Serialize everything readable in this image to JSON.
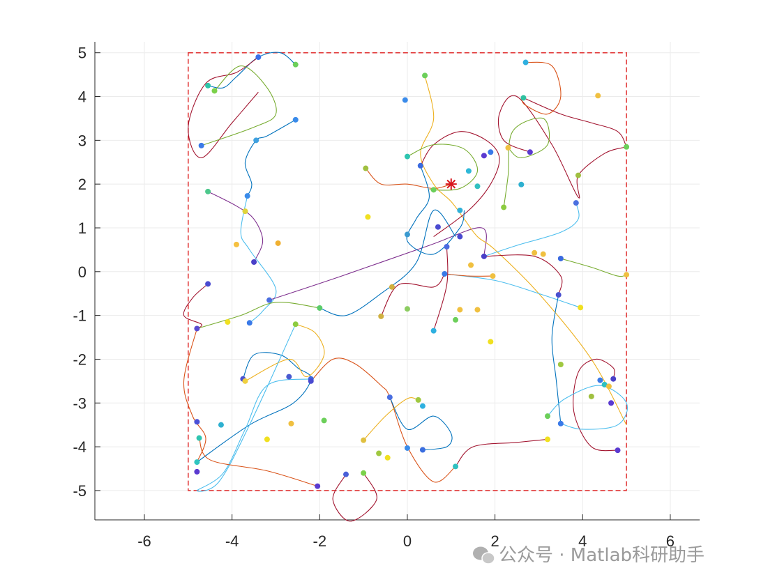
{
  "chart_data": {
    "type": "scatter",
    "xlim": [
      -7.13,
      6.67
    ],
    "ylim": [
      -5.67,
      5.25
    ],
    "xticks": [
      -6,
      -4,
      -2,
      0,
      2,
      4,
      6
    ],
    "yticks": [
      -5,
      -4,
      -3,
      -2,
      -1,
      0,
      1,
      2,
      3,
      4,
      5
    ],
    "grid": true,
    "boundary": {
      "x": [
        -5,
        5
      ],
      "y": [
        -5,
        5
      ],
      "color": "#e03030"
    },
    "target": {
      "x": 1,
      "y": 2,
      "color": "#d8161c"
    },
    "paths": [
      {
        "color": "#0072BD",
        "x": [
          -2.55,
          -2.9,
          -3.4,
          -3.9,
          -4.2,
          -4.55
        ],
        "y": [
          4.73,
          5.0,
          4.9,
          4.45,
          4.2,
          4.25
        ]
      },
      {
        "color": "#A2142F",
        "x": [
          -3.4,
          -3.9,
          -4.6,
          -5.0,
          -4.7,
          -4.0,
          -3.4
        ],
        "y": [
          4.9,
          4.55,
          4.3,
          3.3,
          2.6,
          3.4,
          4.1
        ]
      },
      {
        "color": "#77AC30",
        "x": [
          -4.4,
          -3.8,
          -3.2,
          -3.0,
          -3.5,
          -4.7
        ],
        "y": [
          4.13,
          4.7,
          4.2,
          3.6,
          3.3,
          2.88
        ]
      },
      {
        "color": "#0072BD",
        "x": [
          -2.55,
          -3.2,
          -3.45,
          -3.7,
          -3.55,
          -3.65
        ],
        "y": [
          3.47,
          3.1,
          3.0,
          2.5,
          2.0,
          1.73
        ]
      },
      {
        "color": "#7E2F8E",
        "x": [
          -4.55,
          -3.9,
          -3.5,
          -3.3,
          -3.5
        ],
        "y": [
          1.83,
          1.5,
          1.2,
          0.7,
          0.22
        ]
      },
      {
        "color": "#4DBEEE",
        "x": [
          -3.65,
          -3.8,
          -3.6,
          -3.0,
          -3.3,
          -3.6
        ],
        "y": [
          1.73,
          0.9,
          0.5,
          -0.4,
          -0.9,
          -1.17
        ]
      },
      {
        "color": "#A2142F",
        "x": [
          -4.55,
          -4.9,
          -5.1,
          -4.7,
          -4.8
        ],
        "y": [
          -0.28,
          -0.6,
          -1.0,
          -1.2,
          -1.3
        ]
      },
      {
        "color": "#7E2F8E",
        "x": [
          -3.15,
          -1.5,
          0.5,
          1.7,
          1.75
        ],
        "y": [
          -0.65,
          -0.1,
          0.6,
          1.0,
          0.35
        ]
      },
      {
        "color": "#77AC30",
        "x": [
          -4.8,
          -3.8,
          -3.0,
          -2.0
        ],
        "y": [
          -1.3,
          -1.0,
          -0.7,
          -0.83
        ]
      },
      {
        "color": "#0072BD",
        "x": [
          -2.0,
          -1.4,
          -0.6,
          0.2,
          0.6,
          1.1
        ],
        "y": [
          -0.83,
          -1.0,
          -0.5,
          0.2,
          1.4,
          0.8
        ]
      },
      {
        "color": "#D95319",
        "x": [
          -4.8,
          -5.1,
          -4.9,
          -4.6,
          -4.8
        ],
        "y": [
          -1.3,
          -2.5,
          -3.3,
          -3.8,
          -4.35
        ]
      },
      {
        "color": "#0072BD",
        "x": [
          -3.75,
          -3.5,
          -2.9,
          -2.5,
          -2.2,
          -2.6,
          -3.6,
          -4.8
        ],
        "y": [
          -2.45,
          -1.9,
          -1.9,
          -2.2,
          -2.45,
          -3.0,
          -3.5,
          -4.35
        ]
      },
      {
        "color": "#EDB120",
        "x": [
          -2.55,
          -2.1,
          -1.9,
          -2.3,
          -2.7,
          -3.7
        ],
        "y": [
          -1.2,
          -1.4,
          -1.9,
          -2.4,
          -2.0,
          -2.5
        ]
      },
      {
        "color": "#4DBEEE",
        "x": [
          -2.2,
          -3.2,
          -3.7,
          -4.2,
          -4.8,
          -4.3,
          -3.6,
          -2.55
        ],
        "y": [
          -2.45,
          -2.6,
          -3.6,
          -4.6,
          -5.0,
          -4.8,
          -3.5,
          -1.2
        ]
      },
      {
        "color": "#D95319",
        "x": [
          -4.75,
          -4.5,
          -3.2,
          -2.05
        ],
        "y": [
          -3.8,
          -4.3,
          -4.55,
          -4.9
        ]
      },
      {
        "color": "#D95319",
        "x": [
          -2.2,
          -1.7,
          -1.2,
          -0.6,
          -0.4,
          0.0,
          0.6,
          1.1
        ],
        "y": [
          -2.5,
          -2.0,
          -2.1,
          -2.6,
          -2.87,
          -4.0,
          -4.8,
          -4.45
        ]
      },
      {
        "color": "#A2142F",
        "x": [
          1.1,
          1.5,
          2.5,
          3.2
        ],
        "y": [
          -4.45,
          -4.0,
          -3.9,
          -3.83
        ]
      },
      {
        "color": "#0072BD",
        "x": [
          -0.4,
          0.0,
          0.6,
          1.0,
          0.9,
          0.35
        ],
        "y": [
          -2.87,
          -3.6,
          -3.3,
          -3.7,
          -4.0,
          -4.07
        ]
      },
      {
        "color": "#A2142F",
        "x": [
          -1.4,
          -1.7,
          -1.3,
          -0.7,
          -1.0
        ],
        "y": [
          -4.63,
          -5.2,
          -5.7,
          -5.2,
          -4.6
        ]
      },
      {
        "color": "#EDB120",
        "x": [
          -1.0,
          -0.5,
          0.0,
          0.25
        ],
        "y": [
          -3.85,
          -3.3,
          -2.9,
          -2.93
        ]
      },
      {
        "color": "#EDB120",
        "x": [
          0.4,
          0.6,
          0.3,
          0.6,
          1.0,
          1.3,
          1.6,
          2.0,
          3.0,
          4.2,
          5.0
        ],
        "y": [
          4.48,
          3.5,
          2.7,
          2.0,
          1.6,
          1.2,
          0.8,
          0.5,
          -0.5,
          -2.0,
          -3.5
        ]
      },
      {
        "color": "#A2142F",
        "x": [
          0.3,
          0.6,
          1.2,
          1.8,
          2.1,
          1.9,
          1.4,
          0.6
        ],
        "y": [
          2.42,
          2.9,
          3.2,
          3.0,
          2.6,
          2.0,
          1.4,
          0.8
        ]
      },
      {
        "color": "#77AC30",
        "x": [
          0.0,
          0.6,
          1.3,
          1.6,
          1.2,
          0.5
        ],
        "y": [
          2.63,
          2.9,
          2.8,
          2.3,
          1.9,
          1.87
        ]
      },
      {
        "color": "#D95319",
        "x": [
          -0.95,
          -0.6,
          0.0,
          0.6,
          1.0
        ],
        "y": [
          2.36,
          2.0,
          2.0,
          1.9,
          2.0
        ]
      },
      {
        "color": "#0072BD",
        "x": [
          0.3,
          0.5,
          0.2,
          0.0,
          0.6,
          1.2,
          1.3
        ],
        "y": [
          2.42,
          1.7,
          1.2,
          0.7,
          0.4,
          1.0,
          1.4
        ]
      },
      {
        "color": "#A2142F",
        "x": [
          2.65,
          3.5,
          4.2,
          4.8,
          5.0
        ],
        "y": [
          3.97,
          3.6,
          3.4,
          3.2,
          2.85
        ]
      },
      {
        "color": "#A2142F",
        "x": [
          2.8,
          2.2,
          2.1,
          2.5,
          3.3,
          3.9,
          3.9,
          4.5,
          5.0
        ],
        "y": [
          2.73,
          3.0,
          3.6,
          4.0,
          2.9,
          1.7,
          2.2,
          2.7,
          2.85
        ]
      },
      {
        "color": "#77AC30",
        "x": [
          2.2,
          2.3,
          2.4,
          3.1,
          3.2,
          2.6,
          2.3
        ],
        "y": [
          1.47,
          2.2,
          3.2,
          3.5,
          2.9,
          2.6,
          2.83
        ]
      },
      {
        "color": "#D95319",
        "x": [
          2.7,
          3.3,
          3.5,
          3.2,
          2.7,
          2.6
        ],
        "y": [
          4.78,
          4.7,
          4.0,
          3.6,
          3.8,
          3.97
        ]
      },
      {
        "color": "#4DBEEE",
        "x": [
          1.75,
          2.5,
          3.5,
          3.9,
          3.85
        ],
        "y": [
          0.35,
          0.6,
          0.9,
          1.2,
          1.57
        ]
      },
      {
        "color": "#77AC30",
        "x": [
          3.5,
          4.2,
          4.8,
          5.0
        ],
        "y": [
          0.3,
          0.1,
          -0.1,
          -0.07
        ]
      },
      {
        "color": "#A2142F",
        "x": [
          1.75,
          2.9,
          3.5,
          3.45
        ],
        "y": [
          0.35,
          0.35,
          -0.1,
          -0.53
        ]
      },
      {
        "color": "#4DBEEE",
        "x": [
          0.85,
          2.0,
          3.0,
          3.95
        ],
        "y": [
          -0.05,
          -0.2,
          -0.5,
          -0.82
        ]
      },
      {
        "color": "#0072BD",
        "x": [
          3.45,
          3.3,
          3.4,
          3.5
        ],
        "y": [
          -0.53,
          -1.5,
          -2.5,
          -3.47
        ]
      },
      {
        "color": "#A2142F",
        "x": [
          4.8,
          4.2,
          3.8,
          3.9,
          4.3,
          4.7,
          4.7
        ],
        "y": [
          -4.08,
          -4.0,
          -3.2,
          -2.3,
          -2.0,
          -2.2,
          -2.45
        ]
      },
      {
        "color": "#4DBEEE",
        "x": [
          3.2,
          3.6,
          4.4,
          5.0,
          4.8,
          4.0,
          3.5
        ],
        "y": [
          -3.3,
          -2.9,
          -2.6,
          -3.0,
          -3.5,
          -3.6,
          -3.47
        ]
      },
      {
        "color": "#D95319",
        "x": [
          0.85,
          1.4,
          1.95
        ],
        "y": [
          -0.05,
          -0.1,
          -0.1
        ]
      },
      {
        "color": "#A2142F",
        "x": [
          0.85,
          0.6,
          -0.2,
          -0.6
        ],
        "y": [
          -0.05,
          -0.35,
          -0.3,
          -1.02
        ]
      },
      {
        "color": "#A2142F",
        "x": [
          0.6,
          0.9,
          0.9
        ],
        "y": [
          -1.35,
          -0.3,
          0.57
        ]
      }
    ],
    "points": {
      "x": [
        -3.4,
        -2.55,
        -4.55,
        -4.4,
        -2.55,
        -3.45,
        -4.7,
        -4.55,
        -3.65,
        -3.7,
        -3.9,
        -2.95,
        -3.5,
        -4.55,
        -3.15,
        -2.0,
        -4.8,
        -4.1,
        -3.6,
        -2.55,
        -3.75,
        -3.7,
        -2.7,
        -2.2,
        -2.2,
        -4.8,
        -4.75,
        -4.25,
        -3.2,
        -2.65,
        -1.9,
        -4.8,
        -4.8,
        -2.05,
        -1.4,
        -1.0,
        -1.0,
        -0.65,
        -0.45,
        -0.4,
        0.25,
        0.35,
        0.35,
        0.0,
        1.1,
        -0.6,
        -0.35,
        0.0,
        0.6,
        1.1,
        1.2,
        1.6,
        1.9,
        0.9,
        0.85,
        1.2,
        0.7,
        0.0,
        -0.9,
        1.2,
        1.45,
        1.95,
        1.75,
        -0.95,
        0.0,
        0.3,
        0.6,
        -0.05,
        0.4,
        1.4,
        1.6,
        1.75,
        1.9,
        2.3,
        2.8,
        2.6,
        2.2,
        2.65,
        2.7,
        4.35,
        5.0,
        3.9,
        3.85,
        2.9,
        3.1,
        3.5,
        5.0,
        3.45,
        3.95,
        3.5,
        3.2,
        3.2,
        3.5,
        4.2,
        4.4,
        4.5,
        4.6,
        4.7,
        4.65,
        4.8
      ],
      "y": [
        4.9,
        4.73,
        4.25,
        4.13,
        3.47,
        3.0,
        2.88,
        1.83,
        1.73,
        1.38,
        0.62,
        0.65,
        0.22,
        -0.28,
        -0.65,
        -0.83,
        -1.3,
        -1.15,
        -1.17,
        -1.2,
        -2.45,
        -2.5,
        -2.4,
        -2.45,
        -2.5,
        -3.43,
        -3.8,
        -3.5,
        -3.83,
        -3.47,
        -3.4,
        -4.35,
        -4.57,
        -4.9,
        -4.63,
        -4.6,
        -3.85,
        -4.15,
        -4.25,
        -2.87,
        -2.93,
        -3.07,
        -4.07,
        -4.03,
        -4.45,
        -1.02,
        -0.35,
        -0.85,
        -1.35,
        -1.1,
        -0.87,
        -0.87,
        -1.6,
        0.57,
        -0.05,
        0.8,
        1.02,
        0.85,
        1.25,
        1.4,
        0.15,
        -0.1,
        0.35,
        2.36,
        2.63,
        2.42,
        1.87,
        3.92,
        4.48,
        2.3,
        1.95,
        2.65,
        2.73,
        2.83,
        2.73,
        1.99,
        1.47,
        3.97,
        4.78,
        4.02,
        2.85,
        2.2,
        1.57,
        0.43,
        0.4,
        0.3,
        -0.07,
        -0.53,
        -0.82,
        -2.12,
        -3.3,
        -3.83,
        -3.47,
        -2.85,
        -2.48,
        -2.58,
        -2.62,
        -2.45,
        -3.0,
        -4.08
      ],
      "colors": [
        "#3a6fe8",
        "#6ccf5a",
        "#2ec5a8",
        "#7bd14a",
        "#3a8bea",
        "#3fa1e0",
        "#3a7ae8",
        "#4dc88c",
        "#3a8bea",
        "#e0d43a",
        "#f5c040",
        "#f0b030",
        "#4a40c8",
        "#4a4ad0",
        "#4a6ee0",
        "#5acc6a",
        "#5a4ad0",
        "#f0e020",
        "#3a7ae8",
        "#8ccc40",
        "#4a50d0",
        "#f0d040",
        "#4a5ad0",
        "#3a6ae0",
        "#4a4ad0",
        "#4a50d8",
        "#2ec5b0",
        "#2eb0d0",
        "#f0e020",
        "#f0c040",
        "#6ccf5a",
        "#2ec5c0",
        "#5a3ad0",
        "#5a3ad0",
        "#4a60d8",
        "#7bd14a",
        "#e0c040",
        "#a0c840",
        "#f0e020",
        "#4a6ee0",
        "#a0c840",
        "#2eb0e0",
        "#3a6ee0",
        "#3a8bea",
        "#30c0c0",
        "#d0b040",
        "#d0b040",
        "#8ccc60",
        "#2eb0e0",
        "#6ccf5a",
        "#f0c040",
        "#f0c040",
        "#f0e020",
        "#4a6ae0",
        "#3a7ae8",
        "#4a4ad0",
        "#4a4ad0",
        "#3a9ad0",
        "#f0e020",
        "#30b0d8",
        "#f0c040",
        "#f0c040",
        "#4a40c8",
        "#a0c040",
        "#2ec5b0",
        "#3a6ae0",
        "#6ccf5a",
        "#3a8bea",
        "#6ccf5a",
        "#2eb8d8",
        "#30c0c0",
        "#5a3ad0",
        "#3a7ae8",
        "#f0c040",
        "#5a3ad0",
        "#2eb0d0",
        "#8ccc40",
        "#30c0a0",
        "#30b0e0",
        "#f0c040",
        "#6ccf5a",
        "#a0c040",
        "#4a70e0",
        "#f0c040",
        "#f0c040",
        "#3a6ae0",
        "#f0c040",
        "#4a50d0",
        "#f0e020",
        "#a0c840",
        "#6ccf5a",
        "#f0e020",
        "#3a7ae8",
        "#a0c040",
        "#3a7ae8",
        "#30c0c0",
        "#f0c040",
        "#4a40c8",
        "#5a3ad0",
        "#5a3ad0"
      ]
    }
  },
  "watermark": "公众号 · Matlab科研助手"
}
